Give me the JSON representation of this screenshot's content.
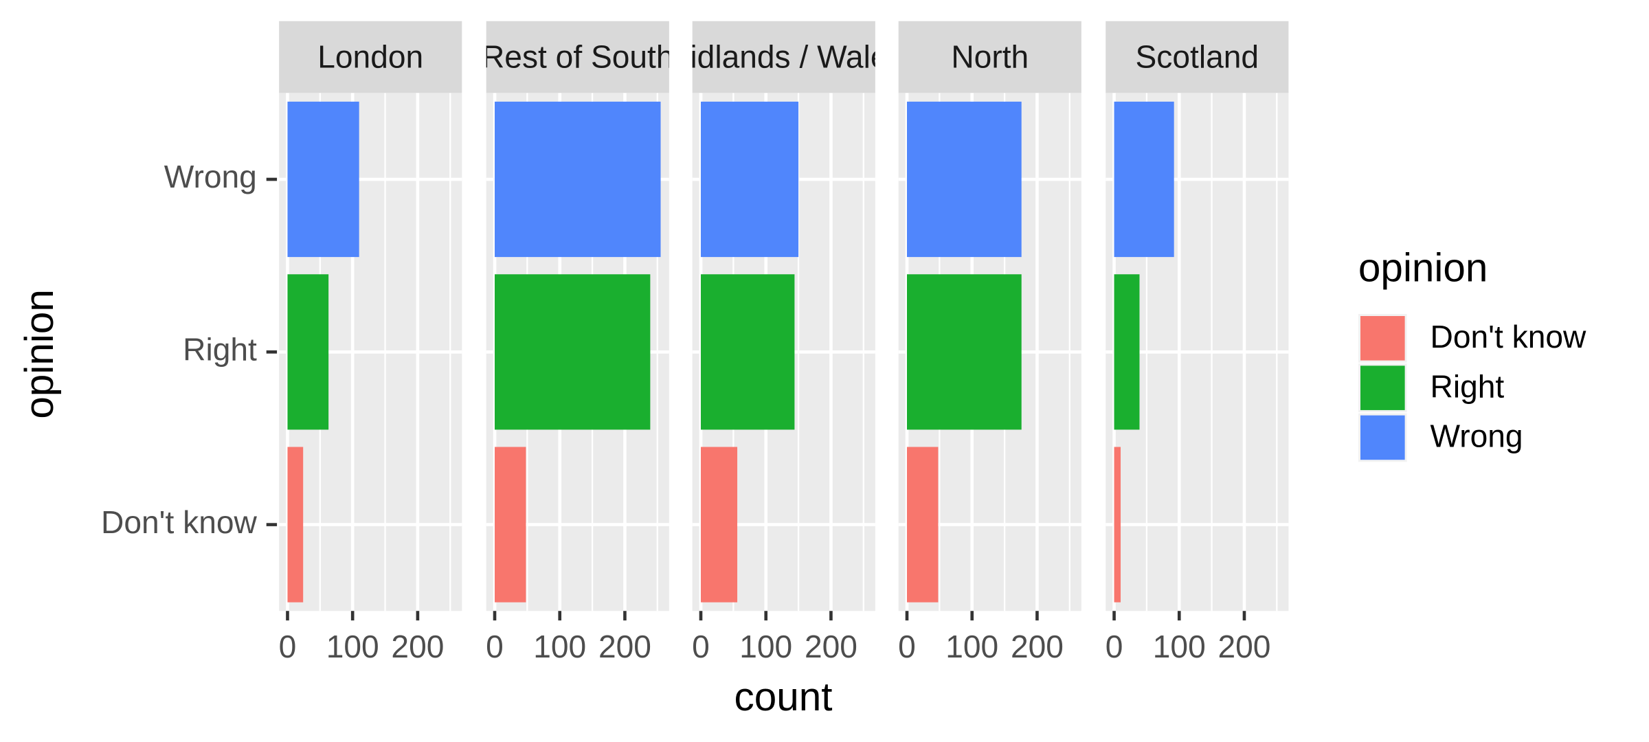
{
  "chart_data": {
    "type": "bar",
    "orientation": "horizontal",
    "x_label": "count",
    "y_label": "opinion",
    "legend_title": "opinion",
    "legend_position": "right",
    "categories": [
      "Don't know",
      "Right",
      "Wrong"
    ],
    "colors": [
      "#f8766d",
      "#1aaf2f",
      "#5086fc"
    ],
    "xlim": [
      -13,
      268
    ],
    "xticks": [
      0,
      100,
      200
    ],
    "minor_xticks": [
      50,
      150,
      250
    ],
    "grid": true,
    "facets": [
      {
        "title": "London",
        "values": [
          24,
          63,
          110
        ]
      },
      {
        "title": "Rest of South",
        "values": [
          48,
          239,
          255
        ]
      },
      {
        "title": "Midlands / Wales",
        "values": [
          56,
          144,
          150
        ]
      },
      {
        "title": "North",
        "values": [
          48,
          176,
          176
        ]
      },
      {
        "title": "Scotland",
        "values": [
          10,
          39,
          92
        ]
      }
    ]
  }
}
